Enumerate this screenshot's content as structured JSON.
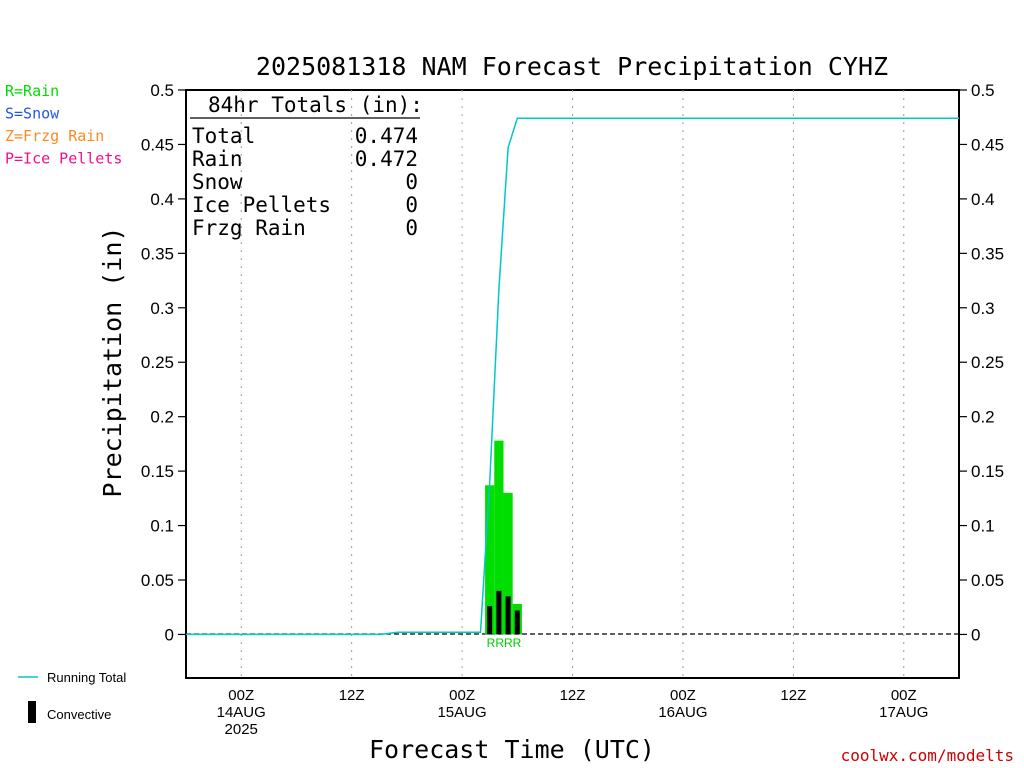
{
  "chart_data": {
    "type": "bar",
    "title": "2025081318 NAM Forecast Precipitation CYHZ",
    "xlabel": "Forecast Time (UTC)",
    "ylabel": "Precipitation (in)",
    "ylim": [
      -0.04,
      0.5
    ],
    "y_ticks": [
      0,
      0.05,
      0.1,
      0.15,
      0.2,
      0.25,
      0.3,
      0.35,
      0.4,
      0.45,
      0.5
    ],
    "y_tick_labels": [
      "0",
      "0.05",
      "0.1",
      "0.15",
      "0.2",
      "0.25",
      "0.3",
      "0.35",
      "0.4",
      "0.45",
      "0.5"
    ],
    "x_unit": "hours after 2025-08-13 18Z",
    "xlim": [
      0,
      84
    ],
    "grid": "vertical dotted",
    "x_ticks": [
      {
        "hour": 6,
        "line1": "00Z",
        "line2": "14AUG",
        "line3": "2025"
      },
      {
        "hour": 18,
        "line1": "12Z",
        "line2": "",
        "line3": ""
      },
      {
        "hour": 30,
        "line1": "00Z",
        "line2": "15AUG",
        "line3": ""
      },
      {
        "hour": 42,
        "line1": "12Z",
        "line2": "",
        "line3": ""
      },
      {
        "hour": 54,
        "line1": "00Z",
        "line2": "16AUG",
        "line3": ""
      },
      {
        "hour": 66,
        "line1": "12Z",
        "line2": "",
        "line3": ""
      },
      {
        "hour": 78,
        "line1": "00Z",
        "line2": "17AUG",
        "line3": ""
      }
    ],
    "series": [
      {
        "name": "Rain",
        "kind": "bar",
        "color": "#00dd00",
        "x": [
          33,
          34,
          35,
          36
        ],
        "values": [
          0.137,
          0.178,
          0.13,
          0.028
        ]
      },
      {
        "name": "Convective",
        "kind": "bar",
        "color": "#000000",
        "x": [
          33,
          34,
          35,
          36
        ],
        "values": [
          0.026,
          0.04,
          0.035,
          0.022
        ]
      },
      {
        "name": "Running Total",
        "kind": "line",
        "color": "#00c8c8",
        "x": [
          0,
          12,
          21,
          22,
          23,
          32,
          33,
          34,
          35,
          36,
          84
        ],
        "values": [
          0,
          0,
          0,
          0.001,
          0.002,
          0.002,
          0.139,
          0.317,
          0.447,
          0.474,
          0.474
        ]
      }
    ]
  },
  "precip_type_key": [
    {
      "text": "R=Rain",
      "color": "#00dd00"
    },
    {
      "text": "S=Snow",
      "color": "#2255ee"
    },
    {
      "text": "Z=Frzg Rain",
      "color": "#ff8822"
    },
    {
      "text": "P=Ice Pellets",
      "color": "#ee1188"
    }
  ],
  "legend": {
    "running_total": "Running Total",
    "convective": "Convective"
  },
  "totals": {
    "header": "84hr Totals (in):",
    "rows": [
      {
        "label": "Total",
        "value": "0.474"
      },
      {
        "label": "Rain",
        "value": "0.472"
      },
      {
        "label": "Snow",
        "value": "0"
      },
      {
        "label": "Ice Pellets",
        "value": "0"
      },
      {
        "label": "Frzg Rain",
        "value": "0"
      }
    ]
  },
  "ptype_marks": "RRRR",
  "credit": "coolwx.com/modelts"
}
